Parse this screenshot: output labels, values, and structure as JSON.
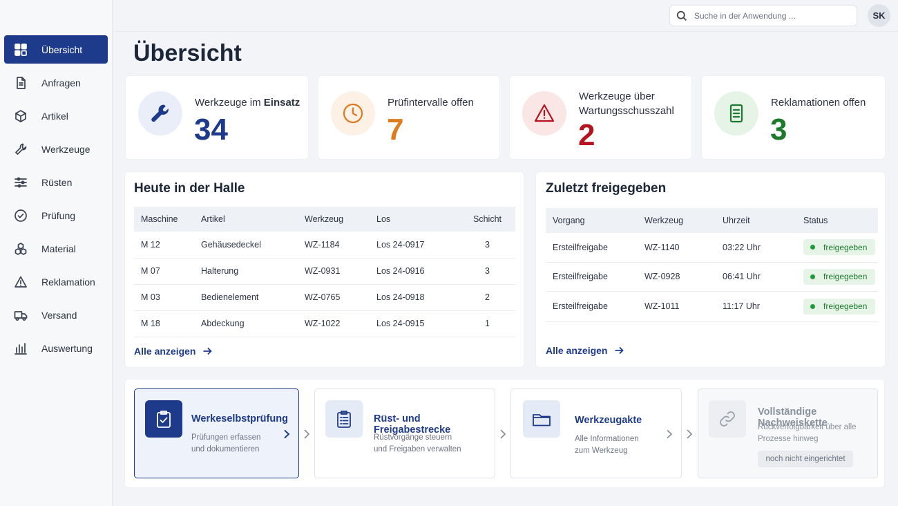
{
  "sidebar": {
    "items": [
      {
        "label": "Übersicht",
        "icon": "dashboard-icon",
        "active": true
      },
      {
        "label": "Anfragen",
        "icon": "document-icon"
      },
      {
        "label": "Artikel",
        "icon": "box-icon"
      },
      {
        "label": "Werkzeuge",
        "icon": "wrench-icon"
      },
      {
        "label": "Rüsten",
        "icon": "sliders-icon"
      },
      {
        "label": "Prüfung",
        "icon": "check-circle-icon"
      },
      {
        "label": "Material",
        "icon": "cubes-icon"
      },
      {
        "label": "Reklamation",
        "icon": "warning-icon"
      },
      {
        "label": "Versand",
        "icon": "truck-icon"
      },
      {
        "label": "Auswertung",
        "icon": "bar-chart-icon"
      }
    ]
  },
  "header": {
    "search_placeholder": "Suche in der Anwendung ...",
    "avatar_initials": "SK"
  },
  "page_title": "Übersicht",
  "kpis": [
    {
      "label_pre": "Werkzeuge im ",
      "label_bold": "Einsatz",
      "value": "34",
      "color": "#1e3a8a",
      "icon": "wrench-icon"
    },
    {
      "label_pre": "Prüfintervalle offen",
      "label_bold": "",
      "value": "7",
      "color": "#e07a1f",
      "icon": "clock-icon"
    },
    {
      "label_pre": "Werkzeuge über Wartungsschusszahl",
      "label_bold": "",
      "value": "2",
      "color": "#b3141d",
      "icon": "warning-icon"
    },
    {
      "label_pre": "Reklamationen offen",
      "label_bold": "",
      "value": "3",
      "color": "#1d7a2c",
      "icon": "document-icon"
    }
  ],
  "halle": {
    "title": "Heute in der Halle",
    "columns": [
      "Maschine",
      "Artikel",
      "Werkzeug",
      "Los",
      "Schicht"
    ],
    "rows": [
      [
        "M 12",
        "Gehäusedeckel",
        "WZ-1184",
        "Los 24-0917",
        "3"
      ],
      [
        "M 07",
        "Halterung",
        "WZ-0931",
        "Los 24-0916",
        "3"
      ],
      [
        "M 03",
        "Bedienelement",
        "WZ-0765",
        "Los 24-0918",
        "2"
      ],
      [
        "M 18",
        "Abdeckung",
        "WZ-1022",
        "Los 24-0915",
        "1"
      ]
    ],
    "more": "Alle anzeigen"
  },
  "freigegeben": {
    "title": "Zuletzt freigegeben",
    "columns": [
      "Vorgang",
      "Werkzeug",
      "Uhrzeit",
      "Status"
    ],
    "rows": [
      [
        "Ersteilfreigabe",
        "WZ-1140",
        "03:22 Uhr",
        "freigegeben"
      ],
      [
        "Ersteilfreigabe",
        "WZ-0928",
        "06:41 Uhr",
        "freigegeben"
      ],
      [
        "Ersteilfreigabe",
        "WZ-1011",
        "11:17 Uhr",
        "freigegeben"
      ]
    ],
    "more": "Alle anzeigen"
  },
  "flow": {
    "steps": [
      {
        "title": "Werkeselbstprüfung",
        "sub1": "Prüfungen erfassen",
        "sub2": "und dokumentieren",
        "icon": "clipboard-check-icon"
      },
      {
        "title": "Rüst- und Freigabestrecke",
        "sub1": "Rüstvorgänge steuern",
        "sub2": "und Freigaben verwalten",
        "icon": "clipboard-list-icon"
      },
      {
        "title": "Werkzeugakte",
        "sub1": "Alle Informationen",
        "sub2": "zum Werkzeug",
        "icon": "folder-icon"
      },
      {
        "title": "Vollständige Nachweiskette",
        "sub1": "Rückverfolgbarkeit über alle",
        "sub2": "Prozesse hinweg",
        "icon": "link-icon",
        "pill": "noch nicht eingerichtet"
      }
    ]
  }
}
